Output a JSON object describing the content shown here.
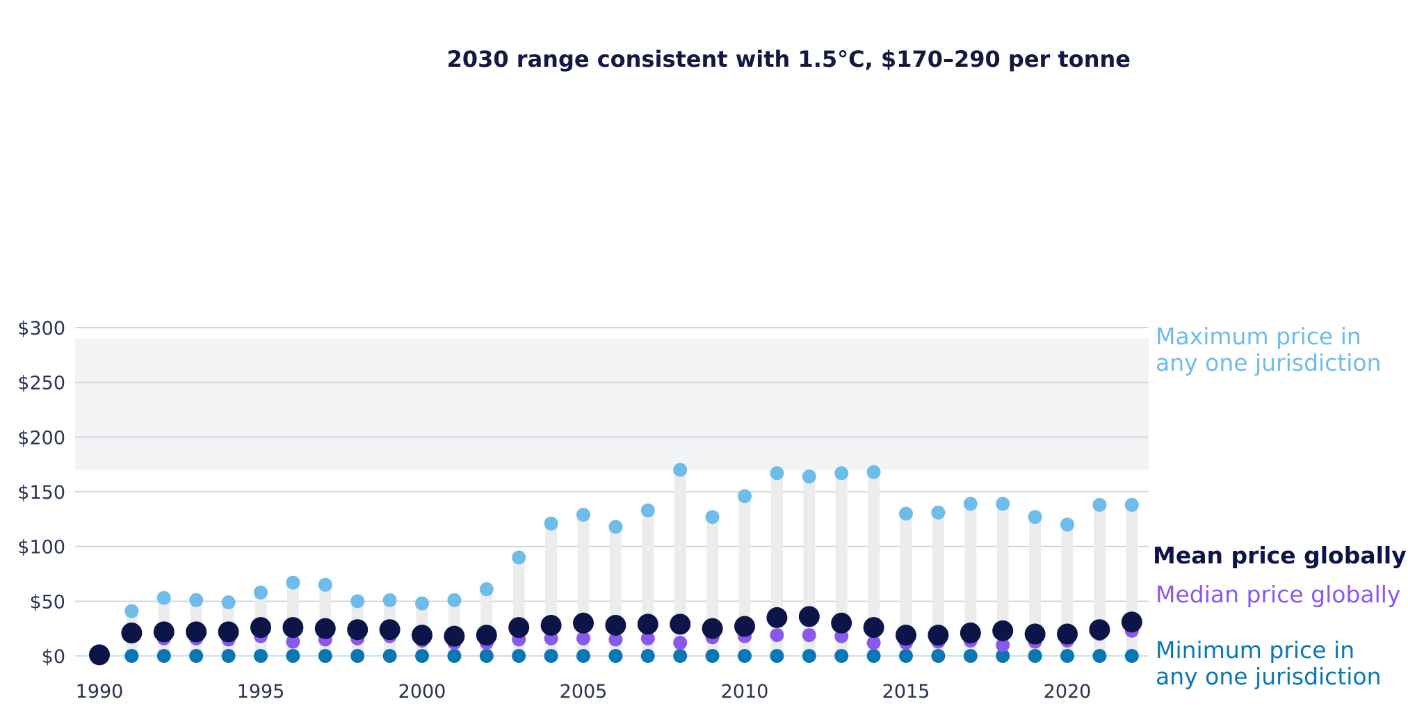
{
  "chart_data": {
    "type": "scatter",
    "x": [
      1990,
      1991,
      1992,
      1993,
      1994,
      1995,
      1996,
      1997,
      1998,
      1999,
      2000,
      2001,
      2002,
      2003,
      2004,
      2005,
      2006,
      2007,
      2008,
      2009,
      2010,
      2011,
      2012,
      2013,
      2014,
      2015,
      2016,
      2017,
      2018,
      2019,
      2020,
      2021,
      2022
    ],
    "series": [
      {
        "name": "Maximum price in any one jurisdiction",
        "color": "#6ebce9",
        "values": [
          null,
          41,
          53,
          51,
          49,
          58,
          67,
          65,
          50,
          51,
          48,
          51,
          61,
          90,
          121,
          129,
          118,
          133,
          170,
          127,
          146,
          167,
          164,
          167,
          168,
          130,
          131,
          139,
          139,
          127,
          120,
          138,
          138
        ]
      },
      {
        "name": "Mean price globally",
        "color": "#0c1448",
        "values": [
          1,
          21,
          22,
          22,
          22,
          26,
          26,
          25,
          24,
          24,
          19,
          18,
          19,
          26,
          28,
          30,
          28,
          29,
          29,
          25,
          27,
          35,
          36,
          30,
          26,
          19,
          19,
          21,
          23,
          20,
          20,
          24,
          31
        ]
      },
      {
        "name": "Median price globally",
        "color": "#8b58ec",
        "values": [
          null,
          null,
          16,
          16,
          15,
          18,
          13,
          15,
          16,
          18,
          14,
          12,
          12,
          15,
          16,
          16,
          15,
          16,
          12,
          17,
          18,
          19,
          19,
          18,
          12,
          12,
          13,
          14,
          10,
          13,
          14,
          20,
          23
        ]
      },
      {
        "name": "Minimum price in any one jurisdiction",
        "color": "#0a77b5",
        "values": [
          null,
          0,
          0,
          0,
          0,
          0,
          0,
          0,
          0,
          0,
          0,
          0,
          0,
          0,
          0,
          0,
          0,
          0,
          0,
          0,
          0,
          0,
          0,
          0,
          0,
          0,
          0,
          0,
          0,
          0,
          0,
          0,
          0
        ]
      }
    ],
    "x_ticks": [
      1990,
      1995,
      2000,
      2005,
      2010,
      2015,
      2020
    ],
    "x_tick_labels": [
      "1990",
      "1995",
      "2000",
      "2005",
      "2010",
      "2015",
      "2020"
    ],
    "y_ticks": [
      0,
      50,
      100,
      150,
      200,
      250,
      300
    ],
    "y_tick_labels": [
      "$0",
      "$50",
      "$100",
      "$150",
      "$200",
      "$250",
      "$300"
    ],
    "ylim": [
      0,
      300
    ],
    "xlim": [
      1989.2,
      2022.6
    ],
    "grid": true,
    "band": {
      "from": 170,
      "to": 290,
      "label": "2030 range consistent with 1.5°C, $170–290 per tonne",
      "color": "#f2f3f5"
    },
    "range_bar_color": "#ececec",
    "grid_color": "#c7ccd4",
    "legend_placement": "right",
    "legend_entries": [
      {
        "series": 0,
        "lines": [
          "Maximum price in",
          "any one jurisdiction"
        ],
        "bold": false
      },
      {
        "series": 1,
        "lines": [
          "Mean price globally"
        ],
        "bold": true
      },
      {
        "series": 2,
        "lines": [
          "Median price globally"
        ],
        "bold": false
      },
      {
        "series": 3,
        "lines": [
          "Minimum price in",
          "any one jurisdiction"
        ],
        "bold": false
      }
    ]
  }
}
